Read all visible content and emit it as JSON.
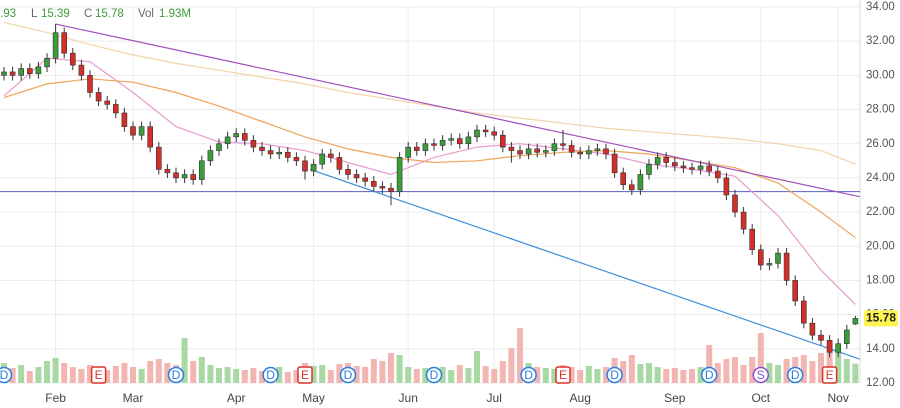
{
  "chart_data": {
    "type": "candlestick",
    "categories": [
      null,
      null,
      null,
      null,
      null,
      null,
      "Feb",
      null,
      null,
      null,
      null,
      null,
      null,
      null,
      null,
      "Mar",
      null,
      null,
      null,
      null,
      null,
      null,
      null,
      null,
      null,
      null,
      null,
      "Apr",
      null,
      null,
      null,
      null,
      null,
      null,
      null,
      null,
      "May",
      null,
      null,
      null,
      null,
      null,
      null,
      null,
      null,
      null,
      null,
      "Jun",
      null,
      null,
      null,
      null,
      null,
      null,
      null,
      null,
      null,
      "Jul",
      null,
      null,
      null,
      null,
      null,
      null,
      null,
      null,
      null,
      "Aug",
      null,
      null,
      null,
      null,
      null,
      null,
      null,
      null,
      null,
      null,
      "Sep",
      null,
      null,
      null,
      null,
      null,
      null,
      null,
      null,
      null,
      "Oct",
      null,
      null,
      null,
      null,
      null,
      null,
      null,
      null,
      "Nov",
      null,
      null
    ],
    "open": [
      30.0,
      30.2,
      30.0,
      30.4,
      30.1,
      30.5,
      31.0,
      32.5,
      31.3,
      30.6,
      30.0,
      29.0,
      28.5,
      28.3,
      27.8,
      27.0,
      26.5,
      27.0,
      25.8,
      24.5,
      24.3,
      24.0,
      24.2,
      23.9,
      25.0,
      25.6,
      26.0,
      26.4,
      26.6,
      26.2,
      25.8,
      25.6,
      25.4,
      25.5,
      25.2,
      25.0,
      24.4,
      24.8,
      25.4,
      25.2,
      24.5,
      24.2,
      24.0,
      23.8,
      23.5,
      23.4,
      23.2,
      25.2,
      25.8,
      25.6,
      26.0,
      25.9,
      26.2,
      26.3,
      26.0,
      26.4,
      26.8,
      26.7,
      26.5,
      25.8,
      25.6,
      25.4,
      25.7,
      25.5,
      25.6,
      26.0,
      25.9,
      25.5,
      25.4,
      25.6,
      25.7,
      25.4,
      24.3,
      23.6,
      23.3,
      24.2,
      24.8,
      25.2,
      24.9,
      24.7,
      24.6,
      24.5,
      24.7,
      24.4,
      24.0,
      23.0,
      22.0,
      21.0,
      19.8,
      18.9,
      19.0,
      19.6,
      18.0,
      16.8,
      15.5,
      14.8,
      14.5,
      13.8,
      14.3,
      15.45
    ],
    "high": [
      30.5,
      30.5,
      30.7,
      30.7,
      30.8,
      31.3,
      33.0,
      32.8,
      31.6,
      30.9,
      30.3,
      29.3,
      28.8,
      28.6,
      28.1,
      27.3,
      27.3,
      27.3,
      26.1,
      24.8,
      24.6,
      24.5,
      24.5,
      25.3,
      25.9,
      26.3,
      26.7,
      26.9,
      26.9,
      26.5,
      26.1,
      25.9,
      25.8,
      25.8,
      25.5,
      25.3,
      25.1,
      25.7,
      25.7,
      25.5,
      24.8,
      24.5,
      24.3,
      24.1,
      23.8,
      23.7,
      25.5,
      26.1,
      26.1,
      26.3,
      26.3,
      26.5,
      26.6,
      26.6,
      26.7,
      27.1,
      27.1,
      27.0,
      26.8,
      26.1,
      25.9,
      26.0,
      26.0,
      25.9,
      26.3,
      26.8,
      26.2,
      25.8,
      25.9,
      26.0,
      26.0,
      25.7,
      24.6,
      23.9,
      24.5,
      25.1,
      25.5,
      25.5,
      25.2,
      25.0,
      24.9,
      25.0,
      25.0,
      24.7,
      24.3,
      23.3,
      22.3,
      21.3,
      20.1,
      19.3,
      19.9,
      19.9,
      18.3,
      17.1,
      15.8,
      15.1,
      14.8,
      14.6,
      15.4,
      15.93
    ],
    "low": [
      29.7,
      29.7,
      29.7,
      29.8,
      29.8,
      30.2,
      30.7,
      31.0,
      30.3,
      29.7,
      28.7,
      28.2,
      28.0,
      27.5,
      26.7,
      26.2,
      26.2,
      25.5,
      24.2,
      24.0,
      23.7,
      23.7,
      23.6,
      23.6,
      24.7,
      25.3,
      25.7,
      26.1,
      25.9,
      25.5,
      25.3,
      25.1,
      25.1,
      24.9,
      24.7,
      23.9,
      24.1,
      24.5,
      24.9,
      24.2,
      23.9,
      23.7,
      23.5,
      23.2,
      23.1,
      22.4,
      22.9,
      24.9,
      25.3,
      25.3,
      25.6,
      25.6,
      25.9,
      25.7,
      25.7,
      26.1,
      26.4,
      26.2,
      25.5,
      24.9,
      25.1,
      25.1,
      25.2,
      25.2,
      25.3,
      25.6,
      25.2,
      25.1,
      25.1,
      25.3,
      25.1,
      24.0,
      23.3,
      23.0,
      23.0,
      23.9,
      24.5,
      24.6,
      24.4,
      24.3,
      24.2,
      24.2,
      24.1,
      23.7,
      22.7,
      21.7,
      20.7,
      19.5,
      18.6,
      18.6,
      18.7,
      17.7,
      16.5,
      15.2,
      14.5,
      14.2,
      13.5,
      13.5,
      14.0,
      15.39
    ],
    "close": [
      30.2,
      30.0,
      30.4,
      30.1,
      30.5,
      31.0,
      32.5,
      31.3,
      30.6,
      30.0,
      29.0,
      28.5,
      28.3,
      27.8,
      27.0,
      26.5,
      27.0,
      25.8,
      24.5,
      24.3,
      24.0,
      24.2,
      23.9,
      25.0,
      25.6,
      26.0,
      26.4,
      26.6,
      26.2,
      25.8,
      25.6,
      25.4,
      25.5,
      25.2,
      25.0,
      24.4,
      24.8,
      25.4,
      25.2,
      24.5,
      24.2,
      24.0,
      23.8,
      23.5,
      23.4,
      23.2,
      25.2,
      25.8,
      25.6,
      26.0,
      25.9,
      26.2,
      26.3,
      26.0,
      26.4,
      26.8,
      26.7,
      26.5,
      25.8,
      25.6,
      25.4,
      25.7,
      25.5,
      25.6,
      26.0,
      25.9,
      25.5,
      25.4,
      25.6,
      25.7,
      25.4,
      24.3,
      23.6,
      23.3,
      24.2,
      24.8,
      25.2,
      24.9,
      24.7,
      24.6,
      24.5,
      24.7,
      24.4,
      24.0,
      23.0,
      22.0,
      21.0,
      19.8,
      18.9,
      19.0,
      19.6,
      18.0,
      16.8,
      15.5,
      14.8,
      14.5,
      13.8,
      14.3,
      15.1,
      15.78
    ],
    "volume": [
      2.0,
      1.5,
      1.8,
      1.2,
      1.6,
      2.2,
      2.5,
      2.0,
      1.6,
      1.4,
      1.8,
      1.5,
      1.3,
      1.7,
      2.0,
      1.6,
      1.4,
      2.2,
      2.4,
      2.0,
      1.8,
      4.5,
      2.2,
      2.6,
      1.8,
      1.5,
      1.6,
      1.4,
      1.3,
      1.5,
      1.2,
      1.4,
      1.6,
      1.1,
      1.3,
      2.0,
      1.7,
      1.8,
      1.3,
      1.9,
      2.0,
      1.7,
      1.6,
      2.4,
      2.2,
      3.0,
      2.8,
      1.6,
      1.4,
      1.5,
      1.2,
      1.6,
      1.3,
      1.8,
      1.5,
      3.2,
      1.7,
      1.4,
      2.2,
      3.5,
      5.5,
      2.0,
      1.6,
      1.5,
      1.4,
      1.8,
      1.6,
      1.3,
      1.7,
      1.4,
      1.6,
      2.5,
      2.2,
      2.8,
      1.9,
      2.0,
      1.6,
      1.4,
      1.5,
      1.3,
      1.4,
      1.6,
      3.8,
      2.0,
      2.4,
      2.6,
      1.8,
      2.6,
      5.0,
      2.0,
      1.8,
      2.4,
      2.6,
      2.8,
      2.2,
      3.0,
      4.0,
      3.2,
      2.4,
      1.93
    ],
    "up_color": "#3a9d3a",
    "down_color": "#d22f2a",
    "up_volume_color": "#a8d8a4",
    "down_volume_color": "#f3b5b2",
    "moving_averages": [
      {
        "color": "#e89bd0",
        "x": [
          0,
          5,
          10,
          15,
          20,
          25,
          30,
          35,
          40,
          45,
          50,
          55,
          60,
          65,
          70,
          75,
          80,
          85,
          90,
          95,
          99
        ],
        "values": [
          28.8,
          31.0,
          30.8,
          29.0,
          27.0,
          26.1,
          26.0,
          25.6,
          24.9,
          24.2,
          25.2,
          25.8,
          26.0,
          25.7,
          25.4,
          24.8,
          24.5,
          24.1,
          21.8,
          18.6,
          16.6
        ]
      },
      {
        "color": "#f0a35a",
        "x": [
          0,
          5,
          10,
          15,
          20,
          25,
          30,
          35,
          40,
          45,
          50,
          55,
          60,
          65,
          70,
          75,
          80,
          85,
          90,
          95,
          99
        ],
        "values": [
          28.7,
          29.5,
          29.8,
          29.6,
          29.0,
          28.2,
          27.3,
          26.4,
          25.7,
          25.2,
          24.9,
          25.0,
          25.3,
          25.5,
          25.6,
          25.4,
          25.0,
          24.6,
          23.7,
          22.0,
          20.5
        ]
      },
      {
        "color": "#f3d3a8",
        "x": [
          0,
          5,
          10,
          15,
          20,
          25,
          30,
          35,
          40,
          45,
          50,
          55,
          60,
          65,
          70,
          75,
          80,
          85,
          90,
          95,
          99
        ],
        "values": [
          33.1,
          32.5,
          31.8,
          31.2,
          30.7,
          30.3,
          29.9,
          29.5,
          29.0,
          28.6,
          28.2,
          27.8,
          27.5,
          27.2,
          26.9,
          26.7,
          26.5,
          26.3,
          26.0,
          25.6,
          24.8
        ]
      }
    ],
    "trendlines": [
      {
        "color": "#a04fc0",
        "x": [
          6,
          99.5
        ],
        "values": [
          33.0,
          22.9
        ]
      },
      {
        "color": "#3f8fd8",
        "x": [
          35.6,
          99.5
        ],
        "values": [
          24.5,
          13.4
        ]
      }
    ],
    "hline": {
      "value": 23.2,
      "color": "#5b5fc7"
    },
    "ylim": [
      12,
      34
    ],
    "yticks": [
      {
        "value": 12,
        "label": "12.00"
      },
      {
        "value": 14,
        "label": "14.00"
      },
      {
        "value": 16,
        "label": "16.00"
      },
      {
        "value": 18,
        "label": "18.00"
      },
      {
        "value": 20,
        "label": "20.00"
      },
      {
        "value": 22,
        "label": "22.00"
      },
      {
        "value": 24,
        "label": "24.00"
      },
      {
        "value": 26,
        "label": "26.00"
      },
      {
        "value": 28,
        "label": "28.00"
      },
      {
        "value": 30,
        "label": "30.00"
      },
      {
        "value": 32,
        "label": "32.00"
      },
      {
        "value": 34,
        "label": "34.00"
      }
    ],
    "grid": true,
    "legend": {
      "fragment": ".93",
      "low_key": "L",
      "close_key": "C",
      "vol_key": "Vol",
      "vol_label": "1.93M"
    },
    "events": [
      {
        "label": "D",
        "index": 0
      },
      {
        "label": "E",
        "index": 11
      },
      {
        "label": "D",
        "index": 20
      },
      {
        "label": "D",
        "index": 31
      },
      {
        "label": "E",
        "index": 35
      },
      {
        "label": "D",
        "index": 40
      },
      {
        "label": "D",
        "index": 50
      },
      {
        "label": "D",
        "index": 61
      },
      {
        "label": "E",
        "index": 65
      },
      {
        "label": "D",
        "index": 71
      },
      {
        "label": "D",
        "index": 82
      },
      {
        "label": "S",
        "index": 88
      },
      {
        "label": "D",
        "index": 92
      },
      {
        "label": "E",
        "index": 96
      }
    ],
    "event_colors": {
      "D": "#2a7de1",
      "E": "#d9342b",
      "S": "#8a4fd0"
    }
  }
}
